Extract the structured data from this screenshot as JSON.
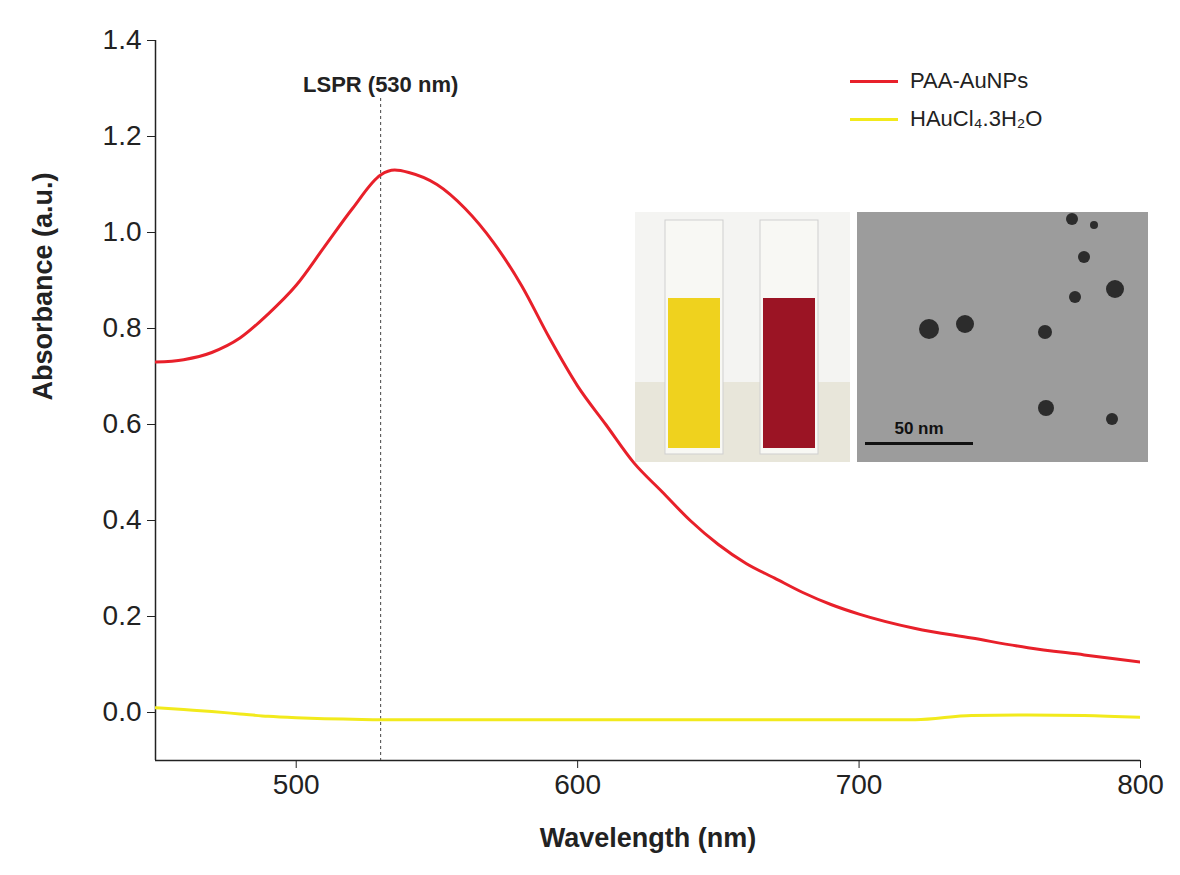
{
  "chart_data": {
    "type": "line",
    "x_label": "Wavelength (nm)",
    "y_label": "Absorbance (a.u.)",
    "xlim": [
      450,
      800
    ],
    "xticks": [
      500,
      600,
      700,
      800
    ],
    "ylim": [
      -0.1,
      1.4
    ],
    "yticks": [
      {
        "value": 0,
        "label": "0.0"
      },
      {
        "value": 0.2,
        "label": "0.2"
      },
      {
        "value": 0.4,
        "label": "0.4"
      },
      {
        "value": 0.6,
        "label": "0.6"
      },
      {
        "value": 0.8,
        "label": "0.8"
      },
      {
        "value": 1.0,
        "label": "1.0"
      },
      {
        "value": 1.2,
        "label": "1.2"
      },
      {
        "value": 1.4,
        "label": "1.4"
      }
    ],
    "legend": "upper right",
    "annotations": [
      {
        "text": "LSPR (530 nm)",
        "x": 530
      }
    ],
    "inset_scale_label": "50 nm",
    "x": [
      450,
      460,
      470,
      480,
      490,
      500,
      510,
      520,
      530,
      535,
      540,
      550,
      560,
      570,
      580,
      590,
      600,
      610,
      620,
      630,
      640,
      650,
      660,
      670,
      680,
      690,
      700,
      720,
      740,
      760,
      780,
      800
    ],
    "series": [
      {
        "name": "PAA-AuNPs",
        "color": "#e8202a",
        "values": [
          0.73,
          0.735,
          0.75,
          0.78,
          0.83,
          0.89,
          0.97,
          1.05,
          1.12,
          1.13,
          1.125,
          1.1,
          1.05,
          0.98,
          0.89,
          0.78,
          0.68,
          0.6,
          0.52,
          0.46,
          0.4,
          0.35,
          0.31,
          0.28,
          0.25,
          0.225,
          0.205,
          0.175,
          0.155,
          0.135,
          0.12,
          0.105
        ]
      },
      {
        "name": "HAuCl₄.3H₂O",
        "color": "#f2ea1c",
        "values": [
          0.01,
          0.006,
          0.002,
          -0.003,
          -0.008,
          -0.011,
          -0.013,
          -0.014,
          -0.015,
          -0.015,
          -0.015,
          -0.015,
          -0.015,
          -0.015,
          -0.015,
          -0.015,
          -0.015,
          -0.015,
          -0.015,
          -0.015,
          -0.015,
          -0.015,
          -0.015,
          -0.015,
          -0.015,
          -0.015,
          -0.015,
          -0.015,
          -0.006,
          -0.005,
          -0.006,
          -0.01
        ]
      }
    ]
  }
}
